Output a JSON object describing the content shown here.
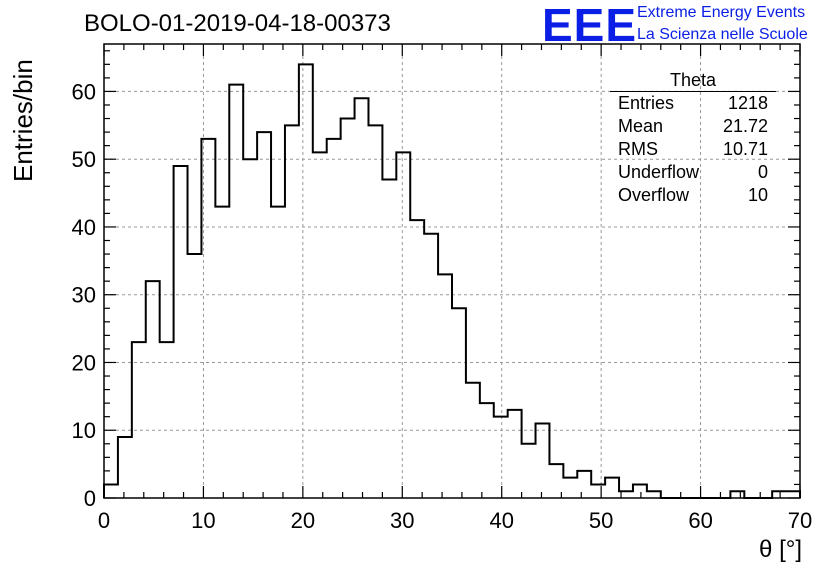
{
  "header": {
    "title": "BOLO-01-2019-04-18-00373"
  },
  "logo": {
    "mark": "EEE",
    "line1": "Extreme Energy Events",
    "line2": "La Scienza nelle Scuole"
  },
  "stats_box": {
    "title": "Theta",
    "rows": [
      {
        "label": "Entries",
        "value": "1218"
      },
      {
        "label": "Mean",
        "value": "21.72"
      },
      {
        "label": "RMS",
        "value": "10.71"
      },
      {
        "label": "Underflow",
        "value": "0"
      },
      {
        "label": "Overflow",
        "value": "10"
      }
    ]
  },
  "chart_data": {
    "type": "bar",
    "histogram": true,
    "bin_width": 1.4,
    "xlabel": "θ [°]",
    "ylabel": "Entries/bin",
    "xlim": [
      0,
      70
    ],
    "ylim": [
      0,
      67
    ],
    "x_ticks": [
      0,
      10,
      20,
      30,
      40,
      50,
      60,
      70
    ],
    "y_ticks": [
      0,
      10,
      20,
      30,
      40,
      50,
      60
    ],
    "grid": true,
    "bin_lows": [
      0,
      1.4,
      2.8,
      4.2,
      5.6,
      7.0,
      8.4,
      9.8,
      11.2,
      12.6,
      14.0,
      15.4,
      16.8,
      18.2,
      19.6,
      21.0,
      22.4,
      23.8,
      25.2,
      26.6,
      28.0,
      29.4,
      30.8,
      32.2,
      33.6,
      35.0,
      36.4,
      37.8,
      39.2,
      40.6,
      42.0,
      43.4,
      44.8,
      46.2,
      47.6,
      49.0,
      50.4,
      51.8,
      53.2,
      54.6,
      56.0,
      57.4,
      58.8,
      60.2,
      61.6,
      63.0,
      64.4,
      65.8,
      67.2,
      68.6
    ],
    "values": [
      2,
      9,
      23,
      32,
      23,
      49,
      36,
      53,
      43,
      61,
      50,
      54,
      43,
      55,
      64,
      51,
      53,
      56,
      59,
      55,
      47,
      51,
      41,
      39,
      33,
      28,
      17,
      14,
      12,
      13,
      8,
      11,
      5,
      3,
      4,
      2,
      3,
      1,
      2,
      1,
      0,
      0,
      0,
      0,
      0,
      1,
      0,
      0,
      1,
      1
    ]
  }
}
